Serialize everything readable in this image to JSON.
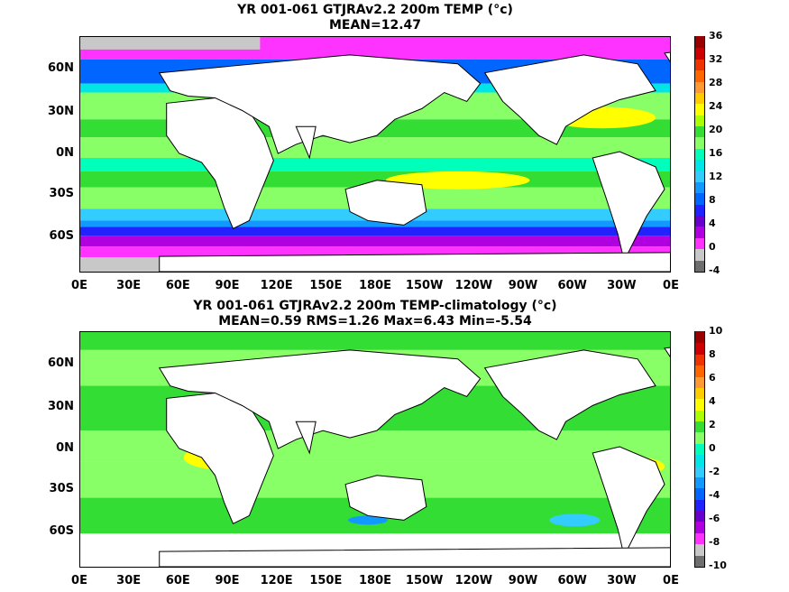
{
  "chart_data": [
    {
      "type": "heatmap",
      "title": "YR 001-061 GTJRAv2.2 200m TEMP (°c)",
      "subtitle": "MEAN=12.47",
      "x_ticks": [
        "0E",
        "30E",
        "60E",
        "90E",
        "120E",
        "150E",
        "180E",
        "150W",
        "120W",
        "90W",
        "60W",
        "30W",
        "0E"
      ],
      "y_ticks": [
        "60N",
        "30N",
        "0N",
        "30S",
        "60S"
      ],
      "colorbar_ticks": [
        "36",
        "32",
        "28",
        "24",
        "20",
        "16",
        "12",
        "8",
        "4",
        "0",
        "-4"
      ],
      "colorbar_colors": [
        "#6e6e6e",
        "#c8c8c8",
        "#ff33ff",
        "#b000e0",
        "#6a00cc",
        "#2222ff",
        "#0066ff",
        "#1199ff",
        "#33ccff",
        "#00e5e5",
        "#00ffbb",
        "#88ff66",
        "#33dd33",
        "#aaff00",
        "#ffff00",
        "#ffcc00",
        "#ff9933",
        "#ff6600",
        "#ee3300",
        "#cc0000",
        "#990000"
      ],
      "range": [
        -4,
        36
      ]
    },
    {
      "type": "heatmap",
      "title": "YR 001-061 GTJRAv2.2 200m TEMP-climatology (°c)",
      "subtitle": "MEAN=0.59   RMS=1.26   Max=6.43   Min=-5.54",
      "x_ticks": [
        "0E",
        "30E",
        "60E",
        "90E",
        "120E",
        "150E",
        "180E",
        "150W",
        "120W",
        "90W",
        "60W",
        "30W",
        "0E"
      ],
      "y_ticks": [
        "60N",
        "30N",
        "0N",
        "30S",
        "60S"
      ],
      "colorbar_ticks": [
        "10",
        "8",
        "6",
        "4",
        "2",
        "0",
        "-2",
        "-4",
        "-6",
        "-8",
        "-10"
      ],
      "colorbar_colors": [
        "#6e6e6e",
        "#c8c8c8",
        "#ff33ff",
        "#b000e0",
        "#6a00cc",
        "#2222ff",
        "#0066ff",
        "#1199ff",
        "#33ccff",
        "#00e5e5",
        "#00ffbb",
        "#88ff66",
        "#33dd33",
        "#aaff00",
        "#ffff00",
        "#ffcc00",
        "#ff9933",
        "#ff6600",
        "#ee3300",
        "#cc0000",
        "#990000"
      ],
      "range": [
        -10,
        10
      ]
    }
  ]
}
